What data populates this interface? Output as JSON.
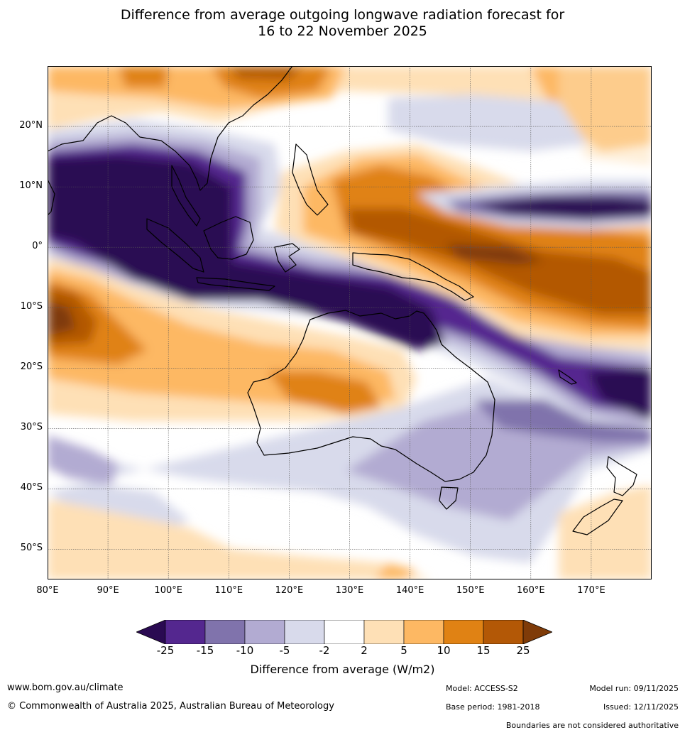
{
  "title": {
    "line1": "Difference from average outgoing longwave radiation forecast for",
    "line2": "16 to 22 November 2025"
  },
  "axes": {
    "lat_labels": [
      "20°N",
      "10°N",
      "0°",
      "10°S",
      "20°S",
      "30°S",
      "40°S",
      "50°S"
    ],
    "lat_values": [
      20,
      10,
      0,
      -10,
      -20,
      -30,
      -40,
      -50
    ],
    "lon_labels": [
      "80°E",
      "90°E",
      "100°E",
      "110°E",
      "120°E",
      "130°E",
      "140°E",
      "150°E",
      "160°E",
      "170°E"
    ],
    "lon_values": [
      80,
      90,
      100,
      110,
      120,
      130,
      140,
      150,
      160,
      170
    ],
    "lon_range": [
      80,
      180
    ],
    "lat_range": [
      -55,
      30
    ]
  },
  "colorbar": {
    "ticks": [
      "-25",
      "-15",
      "-10",
      "-5",
      "-2",
      "2",
      "5",
      "10",
      "15",
      "25"
    ],
    "colors": [
      "#2a0a52",
      "#54278f",
      "#8073ac",
      "#b2abd2",
      "#d8daeb",
      "#ffffff",
      "#fee0b6",
      "#fdb863",
      "#e08214",
      "#b35806",
      "#7f3b08"
    ],
    "label": "Difference from average (W/m2)"
  },
  "footer": {
    "website": "www.bom.gov.au/climate",
    "copyright": "© Commonwealth of Australia 2025, Australian Bureau of Meteorology",
    "model": "Model: ACCESS-S2",
    "base_period": "Base period: 1981-2018",
    "model_run": "Model run: 09/11/2025",
    "issued": "Issued: 12/11/2025",
    "disclaimer": "Boundaries are not considered authoritative"
  }
}
